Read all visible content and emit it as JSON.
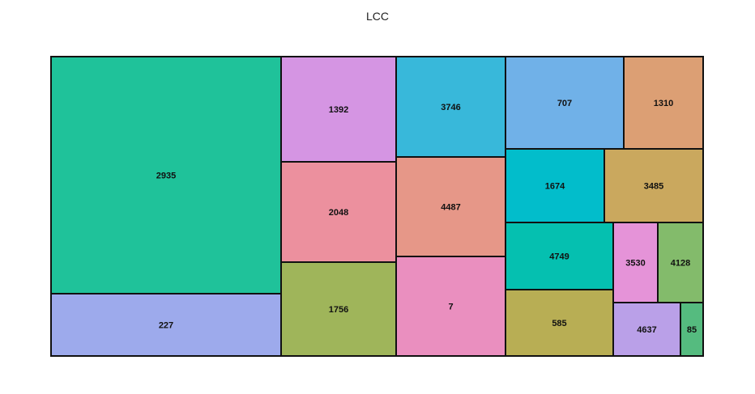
{
  "chart_data": {
    "type": "treemap",
    "title": "LCC",
    "tiles": [
      {
        "label": "2935",
        "color": "#1fc29a"
      },
      {
        "label": "227",
        "color": "#9daaec"
      },
      {
        "label": "1392",
        "color": "#d595e3"
      },
      {
        "label": "2048",
        "color": "#ec909e"
      },
      {
        "label": "1756",
        "color": "#9fb55a"
      },
      {
        "label": "3746",
        "color": "#38b8da"
      },
      {
        "label": "4487",
        "color": "#e69788"
      },
      {
        "label": "7",
        "color": "#ea8fbf"
      },
      {
        "label": "707",
        "color": "#70b1e8"
      },
      {
        "label": "1310",
        "color": "#dc9f74"
      },
      {
        "label": "1674",
        "color": "#02bdcb"
      },
      {
        "label": "3485",
        "color": "#caa85e"
      },
      {
        "label": "4749",
        "color": "#05c0b0"
      },
      {
        "label": "3530",
        "color": "#e593d8"
      },
      {
        "label": "4128",
        "color": "#83bb6b"
      },
      {
        "label": "585",
        "color": "#b8ae54"
      },
      {
        "label": "4637",
        "color": "#baa0e8"
      },
      {
        "label": "85",
        "color": "#55bb7f"
      }
    ]
  }
}
